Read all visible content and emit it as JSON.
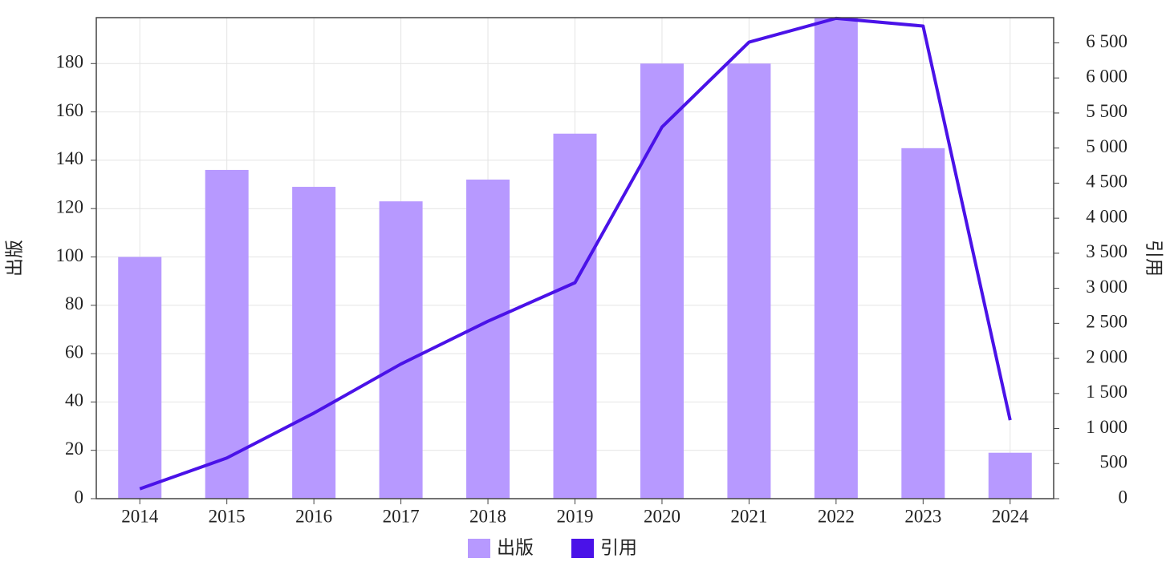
{
  "chart_data": {
    "type": "bar_line",
    "categories": [
      "2014",
      "2015",
      "2016",
      "2017",
      "2018",
      "2019",
      "2020",
      "2021",
      "2022",
      "2023",
      "2024"
    ],
    "series": [
      {
        "name": "出版",
        "type": "bar",
        "color": "#b799ff",
        "values": [
          100,
          136,
          129,
          123,
          132,
          151,
          180,
          180,
          199,
          145,
          19
        ]
      },
      {
        "name": "引用",
        "type": "line",
        "axis": "y2",
        "color": "#4a12e8",
        "values": [
          140,
          580,
          1220,
          1920,
          2530,
          3080,
          5300,
          6510,
          6850,
          6740,
          1120
        ]
      }
    ],
    "y_label": "出版",
    "y2_label": "引用",
    "ylim": [
      0,
      199
    ],
    "yticks": [
      0,
      20,
      40,
      60,
      80,
      100,
      120,
      140,
      160,
      180
    ],
    "y2lim": [
      0,
      6860
    ],
    "y2ticks": [
      0,
      500,
      {
        "value": 1000,
        "label": "1 000"
      },
      {
        "value": 1500,
        "label": "1 500"
      },
      {
        "value": 2000,
        "label": "2 000"
      },
      {
        "value": 2500,
        "label": "2 500"
      },
      {
        "value": 3000,
        "label": "3 000"
      },
      {
        "value": 3500,
        "label": "3 500"
      },
      {
        "value": 4000,
        "label": "4 000"
      },
      {
        "value": 4500,
        "label": "4 500"
      },
      {
        "value": 5000,
        "label": "5 000"
      },
      {
        "value": 5500,
        "label": "5 500"
      },
      {
        "value": 6000,
        "label": "6 000"
      },
      {
        "value": 6500,
        "label": "6 500"
      }
    ],
    "grid": true,
    "legend": "bottom"
  }
}
